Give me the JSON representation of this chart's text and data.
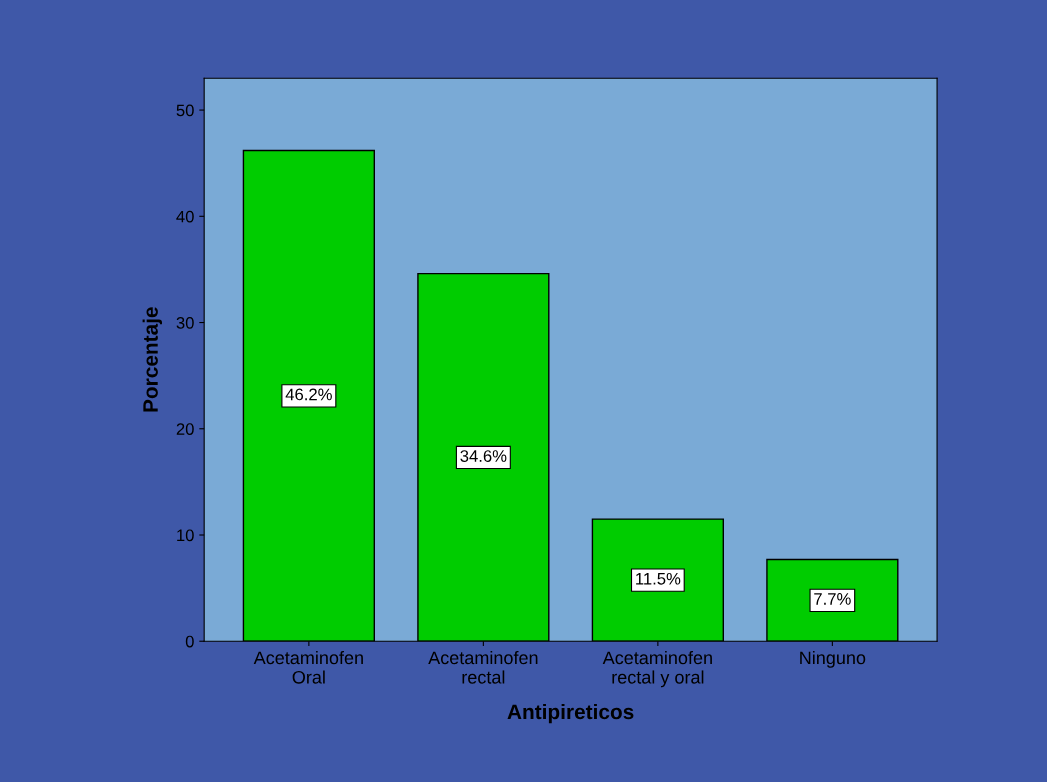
{
  "chart_data": {
    "type": "bar",
    "xlabel": "Antipireticos",
    "ylabel": "Porcentaje",
    "categories": [
      "Acetaminofen\nOral",
      "Acetaminofen\nrectal",
      "Acetaminofen\nrectal y oral",
      "Ninguno"
    ],
    "values": [
      46.2,
      34.6,
      11.5,
      7.7
    ],
    "color": "#00cc00",
    "value_labels": [
      "46.2%",
      "34.6%",
      "11.5%",
      "7.7%"
    ],
    "ylim": [
      0,
      53
    ],
    "yticks": [
      0,
      10,
      20,
      30,
      40,
      50
    ],
    "grid": false,
    "legend": false
  }
}
